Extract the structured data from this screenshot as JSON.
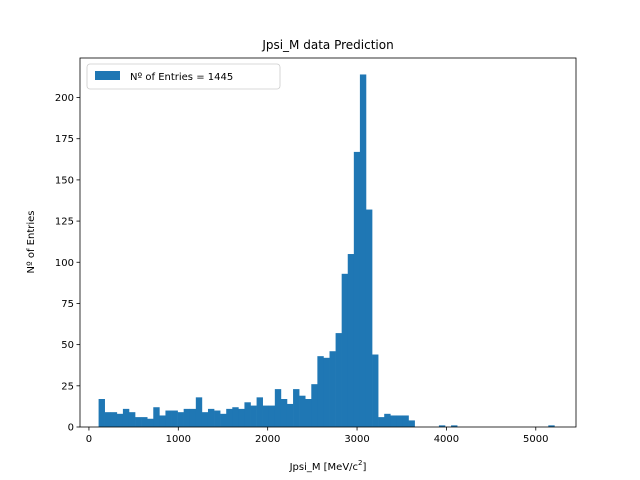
{
  "chart_data": {
    "type": "bar",
    "title": "Jpsi_M data Prediction",
    "xlabel_main": "Jpsi_M [MeV/c",
    "xlabel_sup": "2",
    "xlabel_tail": "]",
    "ylabel": "Nº of Entries",
    "legend": {
      "label": "Nº of Entries = 1445",
      "color": "#1f77b4",
      "placement": "upper-left"
    },
    "xlim": [
      -100,
      5450
    ],
    "ylim": [
      0,
      224
    ],
    "xticks": [
      0,
      1000,
      2000,
      3000,
      4000,
      5000
    ],
    "xtick_labels": [
      "0",
      "1000",
      "2000",
      "3000",
      "4000",
      "5000"
    ],
    "yticks": [
      0,
      25,
      50,
      75,
      100,
      125,
      150,
      175,
      200
    ],
    "ytick_labels": [
      "0",
      "25",
      "50",
      "75",
      "100",
      "125",
      "150",
      "175",
      "200"
    ],
    "bar_color": "#1f77b4",
    "bin_width": 68,
    "bin_starts": [
      108,
      176,
      244,
      312,
      380,
      448,
      516,
      584,
      652,
      720,
      788,
      856,
      924,
      992,
      1060,
      1128,
      1196,
      1264,
      1332,
      1400,
      1468,
      1536,
      1604,
      1672,
      1740,
      1808,
      1876,
      1944,
      2012,
      2080,
      2148,
      2216,
      2284,
      2352,
      2420,
      2488,
      2556,
      2624,
      2692,
      2760,
      2828,
      2896,
      2964,
      3032,
      3100,
      3168,
      3236,
      3304,
      3372,
      3440,
      3508,
      3576,
      3916,
      4052,
      5140
    ],
    "values": [
      17,
      9,
      9,
      8,
      11,
      9,
      6,
      6,
      5,
      12,
      7,
      10,
      10,
      9,
      11,
      11,
      18,
      9,
      11,
      10,
      8,
      11,
      12,
      11,
      15,
      13,
      18,
      13,
      13,
      23,
      17,
      14,
      23,
      19,
      17,
      26,
      43,
      42,
      46,
      57,
      93,
      105,
      167,
      214,
      132,
      44,
      6,
      8,
      7,
      7,
      7,
      4,
      1,
      1,
      1
    ]
  }
}
